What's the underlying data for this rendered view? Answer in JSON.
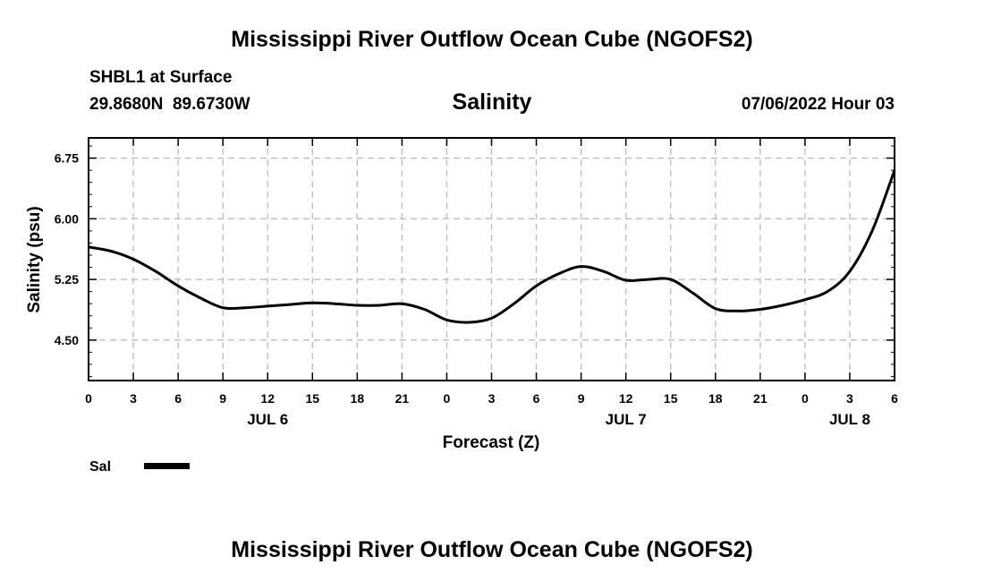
{
  "header": {
    "title": "Mississippi River Outflow Ocean Cube (NGOFS2)",
    "station": "SHBL1 at Surface",
    "coords": "29.8680N  89.6730W",
    "variable": "Salinity",
    "timestamp": "07/06/2022 Hour 03"
  },
  "legend": {
    "label": "Sal",
    "color": "#000000"
  },
  "footer": {
    "title": "Mississippi River Outflow Ocean Cube (NGOFS2)"
  },
  "chart_data": {
    "type": "line",
    "title": "Salinity",
    "xlabel": "Forecast (Z)",
    "ylabel": "Salinity (psu)",
    "xlim": [
      0,
      54
    ],
    "ylim": [
      4.0,
      7.0
    ],
    "grid": true,
    "x_ticks": [
      0,
      3,
      6,
      9,
      12,
      15,
      18,
      21,
      24,
      27,
      30,
      33,
      36,
      39,
      42,
      45,
      48,
      51,
      54
    ],
    "x_tick_labels": [
      "0",
      "3",
      "6",
      "9",
      "12",
      "15",
      "18",
      "21",
      "0",
      "3",
      "6",
      "9",
      "12",
      "15",
      "18",
      "21",
      "0",
      "3",
      "6"
    ],
    "y_ticks": [
      4.5,
      5.25,
      6.0,
      6.75
    ],
    "y_tick_labels": [
      "4.50",
      "5.25",
      "6.00",
      "6.75"
    ],
    "date_labels": [
      {
        "x": 12,
        "label": "JUL 6"
      },
      {
        "x": 36,
        "label": "JUL 7"
      },
      {
        "x": 51,
        "label": "JUL 8"
      }
    ],
    "series": [
      {
        "name": "Sal",
        "x": [
          0,
          1.5,
          3,
          4.5,
          6,
          7.5,
          9,
          10.5,
          12,
          13.5,
          15,
          16.5,
          18,
          19.5,
          21,
          22.5,
          24,
          25.5,
          27,
          28.5,
          30,
          31.5,
          33,
          34.5,
          36,
          37.5,
          39,
          40.5,
          42,
          43.5,
          45,
          46.5,
          48,
          49.5,
          51,
          52.5,
          54
        ],
        "values": [
          5.65,
          5.6,
          5.5,
          5.35,
          5.17,
          5.02,
          4.9,
          4.9,
          4.92,
          4.94,
          4.96,
          4.95,
          4.93,
          4.93,
          4.95,
          4.88,
          4.75,
          4.72,
          4.77,
          4.95,
          5.17,
          5.32,
          5.41,
          5.35,
          5.24,
          5.25,
          5.25,
          5.08,
          4.89,
          4.86,
          4.88,
          4.93,
          5.0,
          5.1,
          5.35,
          5.85,
          6.6
        ]
      }
    ]
  }
}
